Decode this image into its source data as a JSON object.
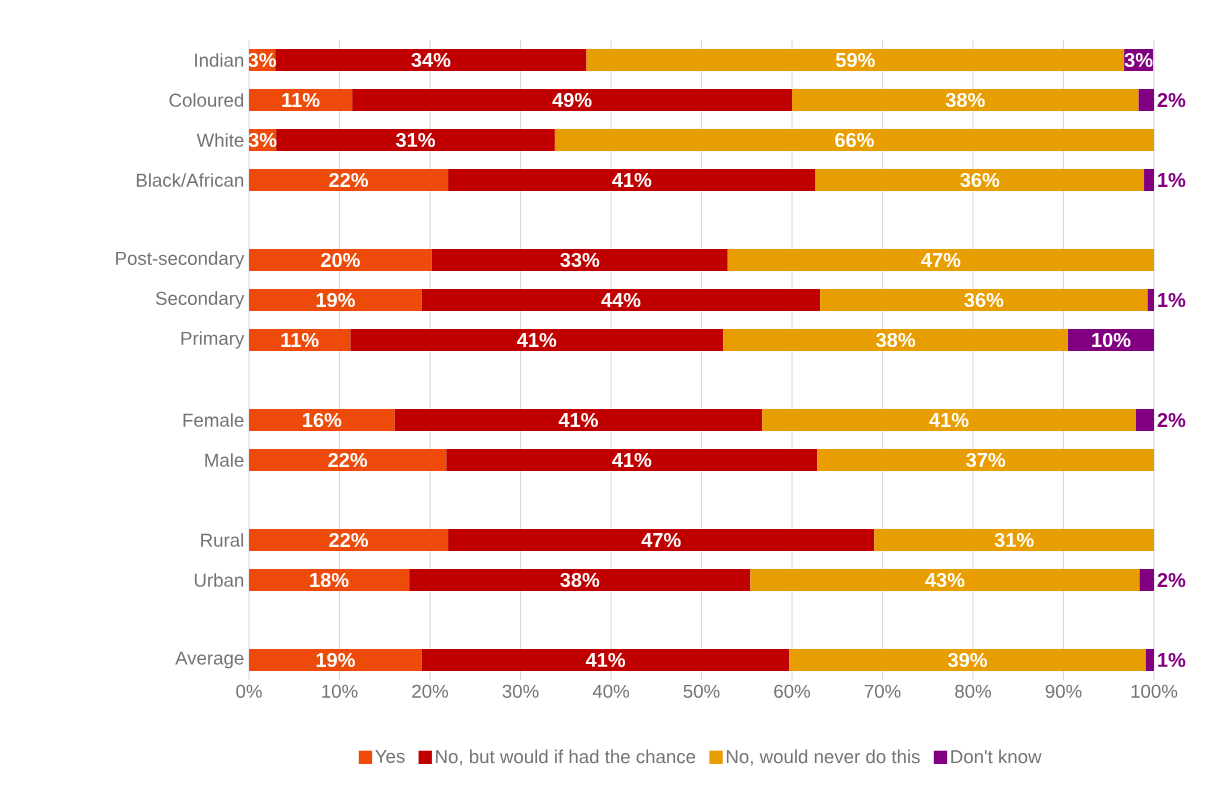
{
  "chart_data": {
    "type": "bar",
    "orientation": "horizontal",
    "stacked": true,
    "categories": [
      "Indian",
      "Coloured",
      "White",
      "Black/African",
      null,
      "Post-secondary",
      "Secondary",
      "Primary",
      null,
      "Female",
      "Male",
      null,
      "Rural",
      "Urban",
      null,
      "Average"
    ],
    "series": [
      {
        "name": "Yes",
        "color": "#ee4b0a",
        "values": [
          2.9,
          11.4,
          3.0,
          22.0,
          null,
          20.2,
          19.1,
          11.2,
          null,
          16.1,
          21.8,
          null,
          22.0,
          17.7,
          null,
          19.1
        ],
        "value_labels": [
          "3%",
          "11%",
          "3%",
          "22%",
          null,
          "20%",
          "19%",
          "11%",
          null,
          "16%",
          "22%",
          null,
          "22%",
          "18%",
          null,
          "19%"
        ]
      },
      {
        "name": "No, but would if had the chance",
        "color": "#c00000",
        "values": [
          34.4,
          48.6,
          30.8,
          40.6,
          null,
          32.7,
          44.0,
          41.2,
          null,
          40.6,
          41.0,
          null,
          47.1,
          37.7,
          null,
          40.6
        ],
        "value_labels": [
          "34%",
          "49%",
          "31%",
          "41%",
          null,
          "33%",
          "44%",
          "41%",
          null,
          "41%",
          "41%",
          null,
          "47%",
          "38%",
          null,
          "41%"
        ]
      },
      {
        "name": "No, would never do this",
        "color": "#e89e00",
        "values": [
          59.4,
          38.3,
          66.2,
          36.3,
          null,
          47.1,
          36.2,
          38.1,
          null,
          41.3,
          37.2,
          null,
          30.9,
          43.0,
          null,
          39.4
        ],
        "value_labels": [
          "59%",
          "38%",
          "66%",
          "36%",
          null,
          "47%",
          "36%",
          "38%",
          null,
          "41%",
          "37%",
          null,
          "31%",
          "43%",
          null,
          "39%"
        ]
      },
      {
        "name": "Don't know",
        "color": "#800080",
        "values": [
          3.2,
          1.7,
          null,
          1.1,
          null,
          null,
          0.7,
          9.5,
          null,
          2.0,
          null,
          null,
          null,
          1.6,
          null,
          0.9
        ],
        "value_labels": [
          "3%",
          "2%",
          null,
          "1%",
          null,
          null,
          "1%",
          "10%",
          null,
          "2%",
          null,
          null,
          null,
          "2%",
          null,
          "1%"
        ]
      }
    ],
    "xlim": [
      0,
      100
    ],
    "xticks": [
      {
        "value": 0,
        "label": "0%"
      },
      {
        "value": 10,
        "label": "10%"
      },
      {
        "value": 20,
        "label": "20%"
      },
      {
        "value": 30,
        "label": "30%"
      },
      {
        "value": 40,
        "label": "40%"
      },
      {
        "value": 50,
        "label": "50%"
      },
      {
        "value": 60,
        "label": "60%"
      },
      {
        "value": 70,
        "label": "70%"
      },
      {
        "value": 80,
        "label": "80%"
      },
      {
        "value": 90,
        "label": "90%"
      },
      {
        "value": 100,
        "label": "100%"
      }
    ],
    "grid": "x",
    "legend": "bottom"
  }
}
